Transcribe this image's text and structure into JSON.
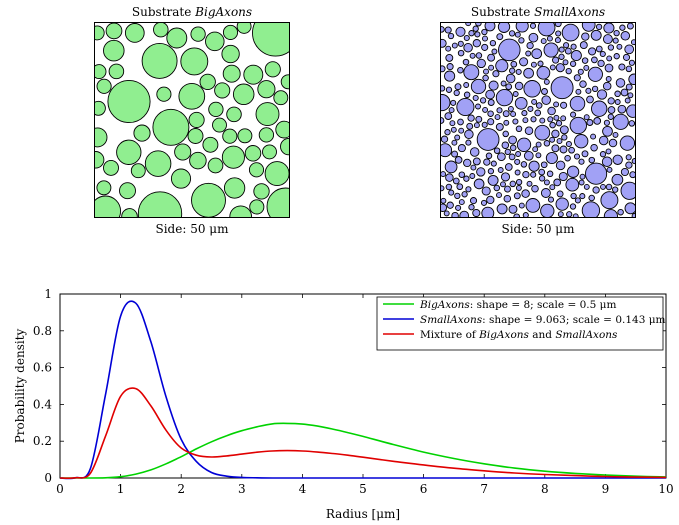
{
  "substrates": [
    {
      "title_prefix": "Substrate ",
      "title_name": "BigAxons",
      "side_prefix": "Side: 50 ",
      "side_unit": "μm",
      "fill": "#90ee90"
    },
    {
      "title_prefix": "Substrate ",
      "title_name": "SmallAxons",
      "side_prefix": "Side: 50 ",
      "side_unit": "μm",
      "fill": "#a1a1f5"
    }
  ],
  "chart_data": {
    "type": "line",
    "xlabel": "Radius  [μm]",
    "ylabel": "Probability density",
    "xlim": [
      0,
      10
    ],
    "ylim": [
      0,
      1
    ],
    "xticks": [
      "0",
      "1",
      "2",
      "3",
      "4",
      "5",
      "6",
      "7",
      "8",
      "9",
      "10"
    ],
    "yticks": [
      "0",
      "0.2",
      "0.4",
      "0.6",
      "0.8",
      "1"
    ],
    "legend_position": "top-right",
    "x": [
      0,
      0.25,
      0.5,
      0.75,
      1,
      1.25,
      1.5,
      1.75,
      2,
      2.25,
      2.5,
      2.75,
      3,
      3.25,
      3.5,
      3.75,
      4,
      4.25,
      4.5,
      4.75,
      5,
      5.5,
      6,
      6.5,
      7,
      7.5,
      8,
      8.5,
      9,
      9.5,
      10
    ],
    "series": [
      {
        "name": "BigAxons: shape = 8; scale = 0.5 μm",
        "color": "#00d200",
        "values": [
          0,
          0,
          0,
          0.001,
          0.007,
          0.021,
          0.044,
          0.077,
          0.116,
          0.158,
          0.197,
          0.23,
          0.257,
          0.278,
          0.294,
          0.297,
          0.293,
          0.282,
          0.266,
          0.247,
          0.226,
          0.182,
          0.141,
          0.106,
          0.077,
          0.054,
          0.037,
          0.025,
          0.016,
          0.01,
          0.006
        ]
      },
      {
        "name": "SmallAxons: shape = 9.063; scale = 0.143 μm",
        "color": "#0000d6",
        "values": [
          0,
          0.001,
          0.05,
          0.45,
          0.88,
          0.95,
          0.74,
          0.44,
          0.21,
          0.09,
          0.03,
          0.01,
          0.003,
          0.001,
          0,
          0,
          0,
          0,
          0,
          0,
          0,
          0,
          0,
          0,
          0,
          0,
          0,
          0,
          0,
          0,
          0
        ]
      },
      {
        "name": "Mixture of BigAxons and SmallAxons",
        "color": "#e00000",
        "values": [
          0,
          0.001,
          0.025,
          0.226,
          0.444,
          0.486,
          0.392,
          0.259,
          0.163,
          0.124,
          0.114,
          0.12,
          0.13,
          0.14,
          0.147,
          0.149,
          0.147,
          0.141,
          0.133,
          0.124,
          0.113,
          0.091,
          0.071,
          0.053,
          0.039,
          0.027,
          0.019,
          0.013,
          0.008,
          0.005,
          0.003
        ]
      }
    ],
    "legend_parts": [
      {
        "it": "BigAxons",
        "rest": ": shape = 8; scale = 0.5 μm"
      },
      {
        "it": "SmallAxons",
        "rest": ": shape = 9.063; scale = 0.143 μm"
      },
      {
        "pre": "Mixture of ",
        "it": "BigAxons",
        "mid": " and ",
        "it2": "SmallAxons"
      }
    ]
  }
}
